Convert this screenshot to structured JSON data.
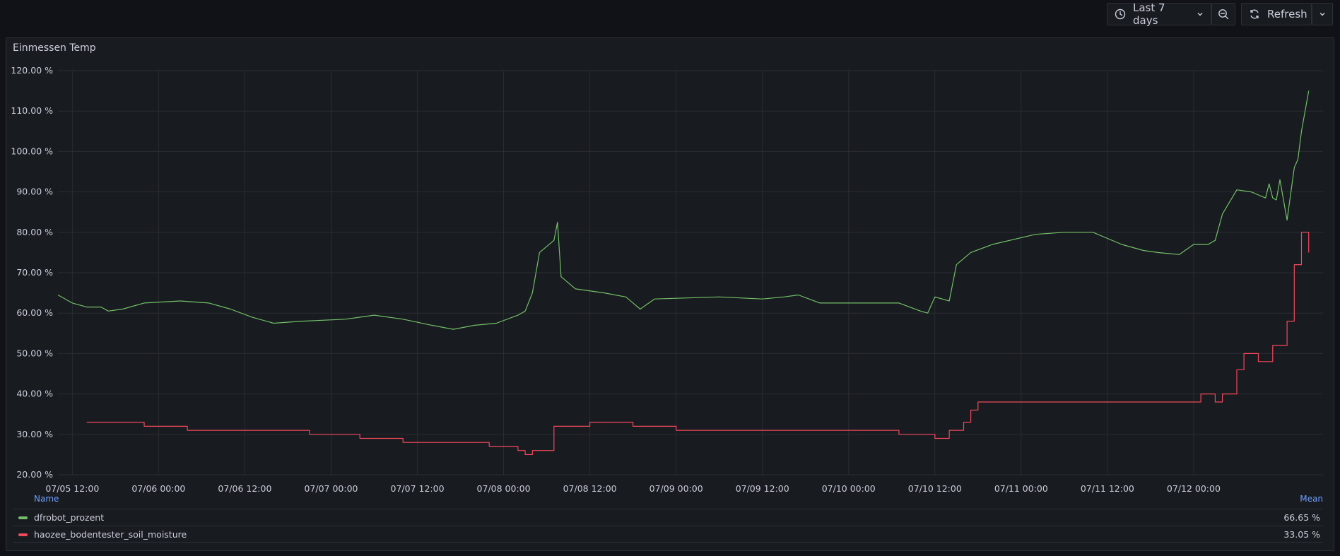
{
  "toolbar": {
    "time_range_label": "Last 7 days",
    "refresh_label": "Refresh"
  },
  "panel": {
    "title": "Einmessen Temp"
  },
  "legend": {
    "name_header": "Name",
    "mean_header": "Mean",
    "rows": [
      {
        "name": "dfrobot_prozent",
        "mean": "66.65 %"
      },
      {
        "name": "haozee_bodentester_soil_moisture",
        "mean": "33.05 %"
      }
    ]
  },
  "colors": {
    "background": "#111217",
    "panel": "#181b1f",
    "grid": "#2a2d33",
    "series_green": "#73bf69",
    "series_red": "#f2495c",
    "legend_header": "#6e9fff"
  },
  "chart_data": {
    "type": "line",
    "xlabel": "",
    "ylabel": "",
    "unit": "%",
    "x_range": [
      "2024-07-05 10:00",
      "2024-07-12 18:00"
    ],
    "ylim": [
      20,
      120
    ],
    "grid": true,
    "legend_placement": "bottom",
    "x_ticks": [
      "07/05 12:00",
      "07/06 00:00",
      "07/06 12:00",
      "07/07 00:00",
      "07/07 12:00",
      "07/08 00:00",
      "07/08 12:00",
      "07/09 00:00",
      "07/09 12:00",
      "07/10 00:00",
      "07/10 12:00",
      "07/11 00:00",
      "07/11 12:00",
      "07/12 00:00"
    ],
    "y_ticks": [
      "20.00 %",
      "30.00 %",
      "40.00 %",
      "50.00 %",
      "60.00 %",
      "70.00 %",
      "80.00 %",
      "90.00 %",
      "100.00 %",
      "110.00 %",
      "120.00 %"
    ],
    "series": [
      {
        "name": "dfrobot_prozent",
        "color": "#73bf69",
        "step": false,
        "x": [
          "2024-07-05 10:00",
          "2024-07-05 12:00",
          "2024-07-05 14:00",
          "2024-07-05 16:00",
          "2024-07-05 17:00",
          "2024-07-05 19:00",
          "2024-07-05 22:00",
          "2024-07-06 03:00",
          "2024-07-06 07:00",
          "2024-07-06 10:00",
          "2024-07-06 13:00",
          "2024-07-06 16:00",
          "2024-07-06 20:00",
          "2024-07-07 02:00",
          "2024-07-07 06:00",
          "2024-07-07 10:00",
          "2024-07-07 14:00",
          "2024-07-07 17:00",
          "2024-07-07 20:00",
          "2024-07-07 23:00",
          "2024-07-08 02:00",
          "2024-07-08 03:00",
          "2024-07-08 04:00",
          "2024-07-08 05:00",
          "2024-07-08 06:00",
          "2024-07-08 07:00",
          "2024-07-08 07:30",
          "2024-07-08 08:00",
          "2024-07-08 10:00",
          "2024-07-08 14:00",
          "2024-07-08 17:00",
          "2024-07-08 19:00",
          "2024-07-08 21:00",
          "2024-07-09 06:00",
          "2024-07-09 12:00",
          "2024-07-09 15:00",
          "2024-07-09 17:00",
          "2024-07-09 20:00",
          "2024-07-10 01:00",
          "2024-07-10 07:00",
          "2024-07-10 10:00",
          "2024-07-10 11:00",
          "2024-07-10 12:00",
          "2024-07-10 14:00",
          "2024-07-10 15:00",
          "2024-07-10 17:00",
          "2024-07-10 20:00",
          "2024-07-11 02:00",
          "2024-07-11 06:00",
          "2024-07-11 10:00",
          "2024-07-11 14:00",
          "2024-07-11 17:00",
          "2024-07-11 19:00",
          "2024-07-11 22:00",
          "2024-07-12 00:00",
          "2024-07-12 02:00",
          "2024-07-12 03:00",
          "2024-07-12 04:00",
          "2024-07-12 06:00",
          "2024-07-12 08:00",
          "2024-07-12 10:00",
          "2024-07-12 10:30",
          "2024-07-12 11:00",
          "2024-07-12 11:30",
          "2024-07-12 12:00",
          "2024-07-12 13:00",
          "2024-07-12 14:00",
          "2024-07-12 14:30",
          "2024-07-12 15:00",
          "2024-07-12 16:00"
        ],
        "y": [
          64.5,
          62.5,
          61.5,
          61.5,
          60.5,
          61.0,
          62.5,
          63.0,
          62.5,
          61.0,
          59.0,
          57.5,
          58.0,
          58.5,
          59.5,
          58.5,
          57.0,
          56.0,
          57.0,
          57.5,
          59.5,
          60.5,
          65.0,
          75.0,
          76.5,
          78.0,
          82.5,
          69.0,
          66.0,
          65.0,
          64.0,
          61.0,
          63.5,
          64.0,
          63.5,
          64.0,
          64.5,
          62.5,
          62.5,
          62.5,
          60.5,
          60.0,
          64.0,
          63.0,
          72.0,
          75.0,
          77.0,
          79.5,
          80.0,
          80.0,
          77.0,
          75.5,
          75.0,
          74.5,
          77.0,
          77.0,
          78.0,
          84.5,
          90.5,
          90.0,
          88.5,
          92.0,
          88.5,
          88.0,
          93.0,
          83.0,
          96.0,
          98.0,
          105.0,
          115.0
        ]
      },
      {
        "name": "haozee_bodentester_soil_moisture",
        "color": "#f2495c",
        "step": true,
        "x": [
          "2024-07-05 14:00",
          "2024-07-05 22:00",
          "2024-07-06 04:00",
          "2024-07-06 10:00",
          "2024-07-06 17:00",
          "2024-07-06 21:00",
          "2024-07-07 04:00",
          "2024-07-07 10:00",
          "2024-07-07 18:00",
          "2024-07-07 22:00",
          "2024-07-08 02:00",
          "2024-07-08 03:00",
          "2024-07-08 04:00",
          "2024-07-08 07:00",
          "2024-07-08 12:00",
          "2024-07-08 18:00",
          "2024-07-09 00:00",
          "2024-07-09 10:00",
          "2024-07-09 20:00",
          "2024-07-10 02:00",
          "2024-07-10 07:00",
          "2024-07-10 12:00",
          "2024-07-10 14:00",
          "2024-07-10 16:00",
          "2024-07-10 17:00",
          "2024-07-10 18:00",
          "2024-07-11 00:00",
          "2024-07-11 10:00",
          "2024-07-11 20:00",
          "2024-07-12 00:00",
          "2024-07-12 01:00",
          "2024-07-12 03:00",
          "2024-07-12 04:00",
          "2024-07-12 06:00",
          "2024-07-12 07:00",
          "2024-07-12 09:00",
          "2024-07-12 11:00",
          "2024-07-12 13:00",
          "2024-07-12 14:00",
          "2024-07-12 15:00",
          "2024-07-12 16:00"
        ],
        "y": [
          33,
          32,
          31,
          31,
          31,
          30,
          29,
          28,
          28,
          27,
          26,
          25,
          26,
          32,
          33,
          32,
          31,
          31,
          31,
          31,
          30,
          29,
          31,
          33,
          36,
          38,
          38,
          38,
          38,
          38,
          40,
          38,
          40,
          46,
          50,
          48,
          52,
          58,
          72,
          80,
          75
        ]
      }
    ]
  }
}
